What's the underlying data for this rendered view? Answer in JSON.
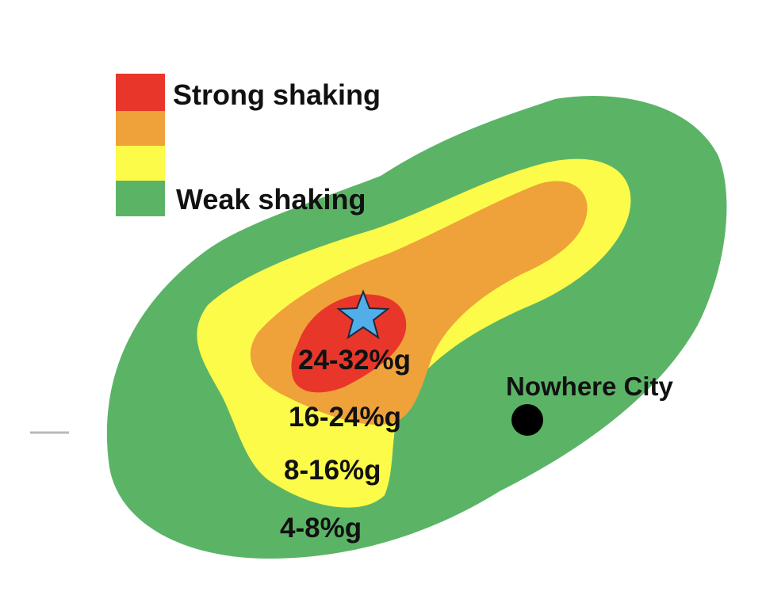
{
  "colors": {
    "strong": "#e8372a",
    "moderate_strong": "#f0a23a",
    "moderate_weak": "#fdfb4a",
    "weak": "#5bb466",
    "epicenter": "#52aee8",
    "city": "#000000"
  },
  "legend": {
    "strong_label": "Strong shaking",
    "weak_label": "Weak shaking"
  },
  "zones": {
    "red_label": "24-32%g",
    "orange_label": "16-24%g",
    "yellow_label": "8-16%g",
    "green_label": "4-8%g"
  },
  "city": {
    "name": "Nowhere City"
  },
  "epicenter_icon": "star-icon"
}
